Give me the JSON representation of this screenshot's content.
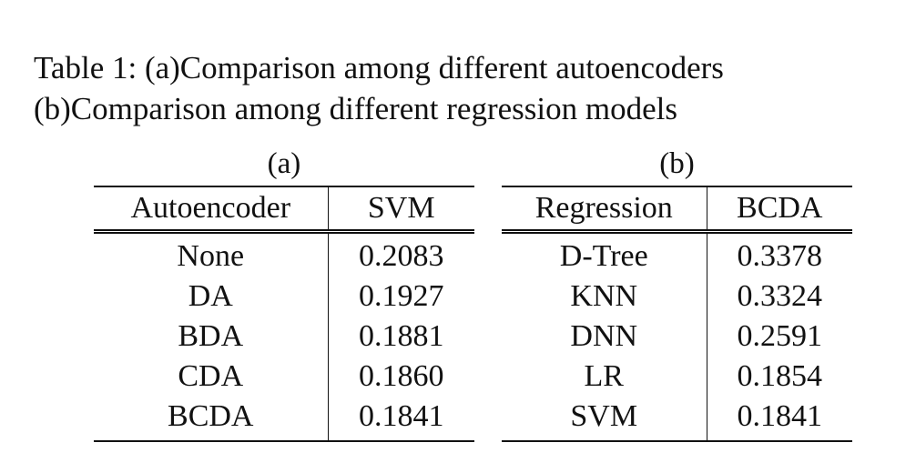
{
  "caption": {
    "line1": "Table 1: (a)Comparison among different autoencoders",
    "line2": "(b)Comparison among different regression models"
  },
  "table_a": {
    "label": "(a)",
    "headers": [
      "Autoencoder",
      "SVM"
    ],
    "rows": [
      [
        "None",
        "0.2083"
      ],
      [
        "DA",
        "0.1927"
      ],
      [
        "BDA",
        "0.1881"
      ],
      [
        "CDA",
        "0.1860"
      ],
      [
        "BCDA",
        "0.1841"
      ]
    ]
  },
  "table_b": {
    "label": "(b)",
    "headers": [
      "Regression",
      "BCDA"
    ],
    "rows": [
      [
        "D-Tree",
        "0.3378"
      ],
      [
        "KNN",
        "0.3324"
      ],
      [
        "DNN",
        "0.2591"
      ],
      [
        "LR",
        "0.1854"
      ],
      [
        "SVM",
        "0.1841"
      ]
    ]
  }
}
